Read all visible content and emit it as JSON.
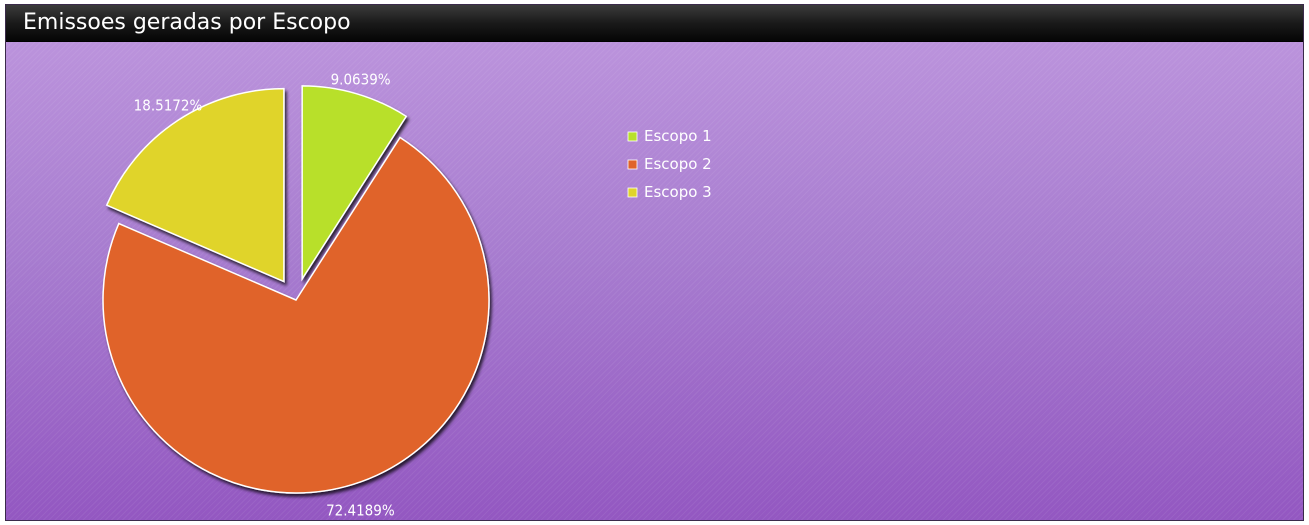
{
  "header": {
    "title": "Emissoes geradas por Escopo"
  },
  "chart_data": {
    "type": "pie",
    "title": "Emissoes geradas por Escopo",
    "legend_position": "top-center",
    "slices": [
      {
        "name": "Escopo 1",
        "percent": 9.0639,
        "label": "9.0639%",
        "color": "#b8e02c"
      },
      {
        "name": "Escopo 2",
        "percent": 72.4189,
        "label": "72.4189%",
        "color": "#e0642c"
      },
      {
        "name": "Escopo 3",
        "percent": 18.5172,
        "label": "18.5172%",
        "color": "#e0d42c"
      }
    ]
  }
}
